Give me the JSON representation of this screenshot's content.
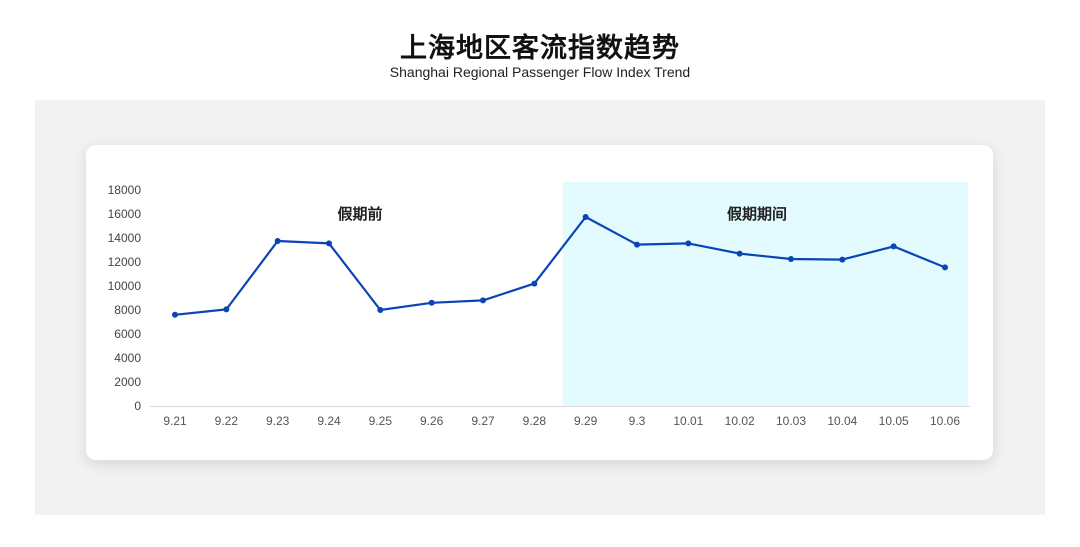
{
  "header": {
    "title": "上海地区客流指数趋势",
    "subtitle": "Shanghai Regional Passenger Flow Index Trend"
  },
  "chart_data": {
    "type": "line",
    "title": "上海地区客流指数趋势",
    "subtitle": "Shanghai Regional Passenger Flow Index Trend",
    "categories": [
      "9.21",
      "9.22",
      "9.23",
      "9.24",
      "9.25",
      "9.26",
      "9.27",
      "9.28",
      "9.29",
      "9.3",
      "10.01",
      "10.02",
      "10.03",
      "10.04",
      "10.05",
      "10.06"
    ],
    "values": [
      7600,
      8050,
      13750,
      13550,
      8000,
      8600,
      8800,
      10200,
      15750,
      13450,
      13550,
      12700,
      12250,
      12200,
      13300,
      11550
    ],
    "ylim": [
      0,
      18000
    ],
    "yticks": [
      0,
      2000,
      4000,
      6000,
      8000,
      10000,
      12000,
      14000,
      16000,
      18000
    ],
    "grid": false,
    "line_color": "#0a44b5",
    "annotations": [
      {
        "text": "假期前"
      },
      {
        "text": "假期期间",
        "shaded_from": "9.29",
        "shaded_to": "10.06",
        "shade_color": "#e3fbfe"
      }
    ]
  }
}
